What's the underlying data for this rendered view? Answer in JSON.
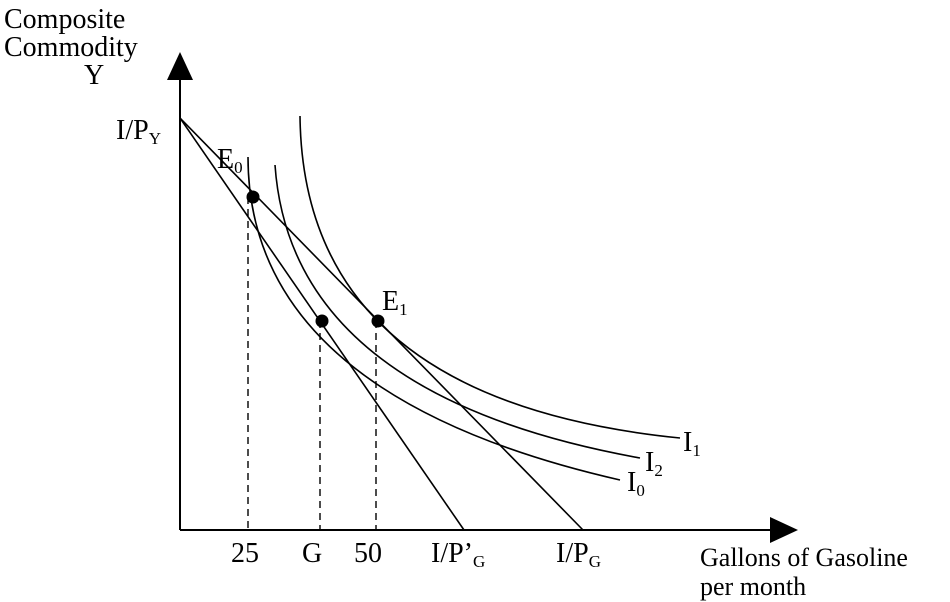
{
  "diagram": {
    "y_axis_label_lines": [
      "Composite",
      "Commodity",
      "Y"
    ],
    "x_axis_label_lines": [
      "Gallons of Gasoline",
      "per month"
    ],
    "y_intercept_label": {
      "main": "I/P",
      "sub": "Y"
    },
    "budget_line_1_label": {
      "main": "I/P’",
      "sub": "G"
    },
    "budget_line_2_label": {
      "main": "I/P",
      "sub": "G"
    },
    "x_ticks": [
      "25",
      "G",
      "50"
    ],
    "equilibria": [
      {
        "main": "E",
        "sub": "0"
      },
      {
        "main": "E",
        "sub": "1"
      }
    ],
    "indifference_curves": [
      {
        "main": "I",
        "sub": "0"
      },
      {
        "main": "I",
        "sub": "1"
      },
      {
        "main": "I",
        "sub": "2"
      }
    ],
    "colors": {
      "ink": "#000000",
      "background": "#ffffff"
    }
  }
}
